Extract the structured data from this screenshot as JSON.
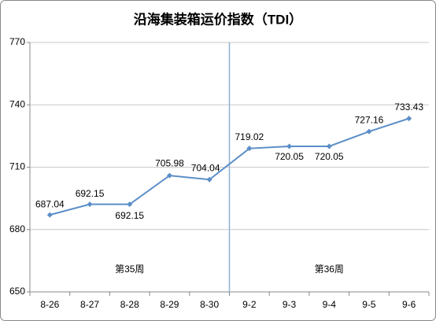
{
  "chart_data": {
    "type": "line",
    "title": "沿海集装箱运价指数（TDI）",
    "categories": [
      "8-26",
      "8-27",
      "8-28",
      "8-29",
      "8-30",
      "9-2",
      "9-3",
      "9-4",
      "9-5",
      "9-6"
    ],
    "values": [
      687.04,
      692.15,
      692.15,
      705.98,
      704.04,
      719.02,
      720.05,
      720.05,
      727.16,
      733.43
    ],
    "color": "#5b8ec7",
    "ylim": [
      650,
      770
    ],
    "yticks": [
      650,
      680,
      710,
      740,
      770
    ],
    "grid": true,
    "annotations": [
      "第35周",
      "第36周"
    ]
  }
}
